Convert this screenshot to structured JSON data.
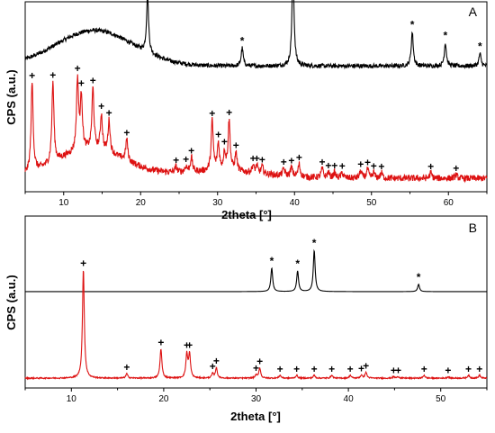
{
  "chart_data": [
    {
      "type": "line",
      "panel": "A",
      "xlabel": "2theta [°]",
      "ylabel": "CPS (a.u.)",
      "xlim": [
        5,
        65
      ],
      "xticks": [
        10,
        20,
        30,
        40,
        50,
        60
      ],
      "grid": false,
      "series": [
        {
          "color": "#000000",
          "offset": 0.62,
          "baseline": 0.05,
          "noise": 0.012,
          "humps": [
            {
              "c": 14,
              "w": 5,
              "h": 0.2
            }
          ],
          "peaks": [
            [
              20.9,
              0.32
            ],
            [
              33.2,
              0.1
            ],
            [
              39.8,
              0.55
            ],
            [
              55.3,
              0.19
            ],
            [
              59.6,
              0.13
            ],
            [
              64.1,
              0.07
            ]
          ]
        },
        {
          "color": "#dd1111",
          "offset": 0.0,
          "baseline": 0.04,
          "noise": 0.018,
          "humps": [
            {
              "c": 13.5,
              "w": 4.5,
              "h": 0.16
            },
            {
              "c": 30,
              "w": 6,
              "h": 0.04
            }
          ],
          "peaks": [
            [
              5.9,
              0.5
            ],
            [
              8.6,
              0.45
            ],
            [
              11.8,
              0.4
            ],
            [
              12.3,
              0.3
            ],
            [
              13.8,
              0.34
            ],
            [
              14.9,
              0.2
            ],
            [
              15.9,
              0.18
            ],
            [
              18.2,
              0.12
            ],
            [
              24.6,
              0.03
            ],
            [
              25.9,
              0.03
            ],
            [
              26.6,
              0.08
            ],
            [
              29.3,
              0.28
            ],
            [
              30.1,
              0.15
            ],
            [
              30.9,
              0.1
            ],
            [
              31.5,
              0.28
            ],
            [
              32.4,
              0.1
            ],
            [
              34.6,
              0.04
            ],
            [
              35.1,
              0.04
            ],
            [
              35.8,
              0.04
            ],
            [
              38.6,
              0.04
            ],
            [
              39.6,
              0.05
            ],
            [
              40.6,
              0.07
            ],
            [
              43.6,
              0.05
            ],
            [
              44.4,
              0.03
            ],
            [
              45.2,
              0.03
            ],
            [
              46.2,
              0.03
            ],
            [
              48.6,
              0.04
            ],
            [
              49.5,
              0.05
            ],
            [
              50.3,
              0.03
            ],
            [
              51.3,
              0.03
            ],
            [
              57.7,
              0.03
            ],
            [
              61.0,
              0.02
            ]
          ]
        }
      ],
      "markers": [
        {
          "symbol": "*",
          "x": [
            20.9,
            33.2,
            39.8,
            55.3,
            59.6,
            64.1
          ]
        },
        {
          "symbol": "+",
          "x": [
            5.9,
            8.6,
            11.8,
            12.3,
            13.8,
            14.9,
            15.9,
            18.2,
            24.6,
            25.9,
            26.6,
            29.3,
            30.1,
            30.9,
            31.5,
            32.4,
            34.6,
            35.1,
            35.8,
            38.6,
            39.6,
            40.6,
            43.6,
            44.4,
            45.2,
            46.2,
            48.6,
            49.5,
            50.3,
            51.3,
            57.7,
            61.0
          ]
        }
      ]
    },
    {
      "type": "line",
      "panel": "B",
      "xlabel": "2theta [°]",
      "ylabel": "CPS (a.u.)",
      "xlim": [
        5,
        55
      ],
      "xticks": [
        10,
        20,
        30,
        40,
        50
      ],
      "grid": false,
      "series": [
        {
          "color": "#000000",
          "offset": 0.62,
          "baseline": 0.0,
          "noise": 0.0,
          "humps": [],
          "peaks": [
            [
              31.7,
              0.16
            ],
            [
              34.5,
              0.14
            ],
            [
              36.3,
              0.28
            ],
            [
              47.6,
              0.05
            ]
          ]
        },
        {
          "color": "#dd1111",
          "offset": 0.0,
          "baseline": 0.03,
          "noise": 0.004,
          "humps": [],
          "peaks": [
            [
              11.3,
              0.74
            ],
            [
              16.0,
              0.03
            ],
            [
              19.7,
              0.2
            ],
            [
              22.5,
              0.16
            ],
            [
              22.8,
              0.16
            ],
            [
              25.3,
              0.03
            ],
            [
              25.7,
              0.07
            ],
            [
              30.0,
              0.02
            ],
            [
              30.4,
              0.07
            ],
            [
              32.6,
              0.02
            ],
            [
              34.4,
              0.02
            ],
            [
              36.3,
              0.02
            ],
            [
              38.2,
              0.02
            ],
            [
              40.2,
              0.02
            ],
            [
              41.4,
              0.02
            ],
            [
              41.9,
              0.04
            ],
            [
              44.9,
              0.01
            ],
            [
              45.4,
              0.01
            ],
            [
              48.2,
              0.02
            ],
            [
              50.8,
              0.01
            ],
            [
              53.0,
              0.02
            ],
            [
              54.2,
              0.02
            ]
          ]
        }
      ],
      "markers": [
        {
          "symbol": "*",
          "x": [
            31.7,
            34.5,
            36.3,
            47.6
          ]
        },
        {
          "symbol": "+",
          "x": [
            11.3,
            16.0,
            19.7,
            22.5,
            22.8,
            25.3,
            25.7,
            30.0,
            30.4,
            32.6,
            34.4,
            36.3,
            38.2,
            40.2,
            41.4,
            41.9,
            44.9,
            45.4,
            48.2,
            50.8,
            53.0,
            54.2
          ]
        }
      ]
    }
  ]
}
